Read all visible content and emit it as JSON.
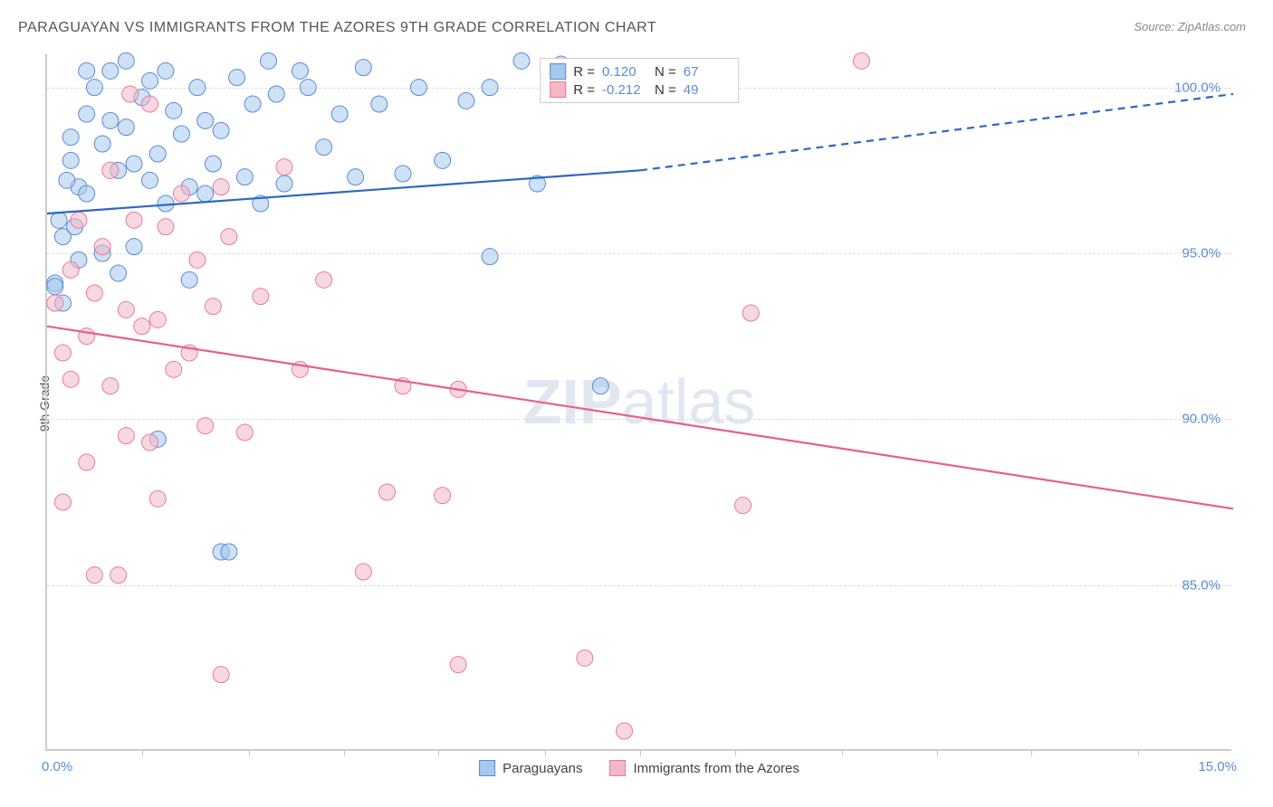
{
  "title": "PARAGUAYAN VS IMMIGRANTS FROM THE AZORES 9TH GRADE CORRELATION CHART",
  "source": "Source: ZipAtlas.com",
  "watermark": "ZIPatlas",
  "chart": {
    "type": "scatter",
    "ylabel": "9th Grade",
    "xlim": [
      0,
      15
    ],
    "ylim": [
      80,
      101
    ],
    "xlim_labels": [
      "0.0%",
      "15.0%"
    ],
    "xlim_label_colors": [
      "#5b8bd4",
      "#5b8bd4"
    ],
    "ytick_values": [
      85,
      90,
      95,
      100
    ],
    "ytick_labels": [
      "85.0%",
      "90.0%",
      "95.0%",
      "100.0%"
    ],
    "ytick_color": "#5b8bd4",
    "grid_color": "#dddddd",
    "axis_color": "#cccccc",
    "background_color": "#ffffff",
    "xtick_positions": [
      0.08,
      0.17,
      0.25,
      0.33,
      0.42,
      0.5,
      0.58,
      0.67,
      0.75,
      0.83,
      0.92
    ],
    "series": [
      {
        "name": "Paraguayans",
        "color_fill": "#a6c8ec",
        "color_stroke": "#5b8bd4",
        "marker_radius": 9,
        "fill_opacity": 0.55,
        "R": "0.120",
        "N": "67",
        "trend": {
          "x1": 0,
          "y1": 96.2,
          "x2": 7.5,
          "y2": 97.5,
          "dash_x2": 15,
          "dash_y2": 99.8,
          "color": "#2e67c4",
          "width": 2.2
        },
        "points": [
          [
            0.1,
            94.1
          ],
          [
            0.1,
            94.0
          ],
          [
            0.2,
            93.5
          ],
          [
            0.2,
            95.5
          ],
          [
            0.3,
            97.8
          ],
          [
            0.3,
            98.5
          ],
          [
            0.4,
            97.0
          ],
          [
            0.5,
            100.5
          ],
          [
            0.4,
            94.8
          ],
          [
            0.5,
            96.8
          ],
          [
            0.5,
            99.2
          ],
          [
            0.6,
            100.0
          ],
          [
            0.7,
            98.3
          ],
          [
            0.7,
            95.0
          ],
          [
            0.8,
            100.5
          ],
          [
            0.8,
            99.0
          ],
          [
            0.9,
            97.5
          ],
          [
            0.9,
            94.4
          ],
          [
            1.0,
            100.8
          ],
          [
            1.0,
            98.8
          ],
          [
            1.1,
            97.7
          ],
          [
            1.1,
            95.2
          ],
          [
            1.2,
            99.7
          ],
          [
            1.3,
            100.2
          ],
          [
            1.3,
            97.2
          ],
          [
            1.4,
            98.0
          ],
          [
            1.4,
            89.4
          ],
          [
            1.5,
            100.5
          ],
          [
            1.5,
            96.5
          ],
          [
            1.6,
            99.3
          ],
          [
            1.7,
            98.6
          ],
          [
            1.8,
            97.0
          ],
          [
            1.8,
            94.2
          ],
          [
            1.9,
            100.0
          ],
          [
            2.0,
            99.0
          ],
          [
            2.0,
            96.8
          ],
          [
            2.1,
            97.7
          ],
          [
            2.2,
            98.7
          ],
          [
            2.2,
            86.0
          ],
          [
            2.3,
            86.0
          ],
          [
            2.4,
            100.3
          ],
          [
            2.5,
            97.3
          ],
          [
            2.6,
            99.5
          ],
          [
            2.7,
            96.5
          ],
          [
            2.8,
            100.8
          ],
          [
            2.9,
            99.8
          ],
          [
            3.0,
            97.1
          ],
          [
            3.2,
            100.5
          ],
          [
            3.3,
            100.0
          ],
          [
            3.5,
            98.2
          ],
          [
            3.7,
            99.2
          ],
          [
            3.9,
            97.3
          ],
          [
            4.0,
            100.6
          ],
          [
            4.2,
            99.5
          ],
          [
            4.5,
            97.4
          ],
          [
            4.7,
            100.0
          ],
          [
            5.0,
            97.8
          ],
          [
            5.3,
            99.6
          ],
          [
            5.6,
            100.0
          ],
          [
            5.6,
            94.9
          ],
          [
            6.0,
            100.8
          ],
          [
            6.2,
            97.1
          ],
          [
            6.5,
            100.7
          ],
          [
            7.0,
            91.0
          ],
          [
            0.15,
            96.0
          ],
          [
            0.25,
            97.2
          ],
          [
            0.35,
            95.8
          ]
        ]
      },
      {
        "name": "Immigrants from the Azores",
        "color_fill": "#f3b8c6",
        "color_stroke": "#e87a9a",
        "marker_radius": 9,
        "fill_opacity": 0.55,
        "R": "-0.212",
        "N": "49",
        "trend": {
          "x1": 0,
          "y1": 92.8,
          "x2": 15,
          "y2": 87.3,
          "color": "#e85f87",
          "width": 2.2
        },
        "points": [
          [
            0.1,
            93.5
          ],
          [
            0.2,
            92.0
          ],
          [
            0.2,
            87.5
          ],
          [
            0.3,
            94.5
          ],
          [
            0.3,
            91.2
          ],
          [
            0.4,
            96.0
          ],
          [
            0.5,
            92.5
          ],
          [
            0.5,
            88.7
          ],
          [
            0.6,
            93.8
          ],
          [
            0.6,
            85.3
          ],
          [
            0.7,
            95.2
          ],
          [
            0.8,
            97.5
          ],
          [
            0.8,
            91.0
          ],
          [
            0.9,
            85.3
          ],
          [
            1.0,
            93.3
          ],
          [
            1.0,
            89.5
          ],
          [
            1.1,
            96.0
          ],
          [
            1.2,
            92.8
          ],
          [
            1.3,
            99.5
          ],
          [
            1.3,
            89.3
          ],
          [
            1.4,
            93.0
          ],
          [
            1.4,
            87.6
          ],
          [
            1.5,
            95.8
          ],
          [
            1.6,
            91.5
          ],
          [
            1.7,
            96.8
          ],
          [
            1.8,
            92.0
          ],
          [
            1.9,
            94.8
          ],
          [
            2.0,
            89.8
          ],
          [
            2.1,
            93.4
          ],
          [
            2.2,
            97.0
          ],
          [
            2.2,
            82.3
          ],
          [
            2.3,
            95.5
          ],
          [
            2.5,
            89.6
          ],
          [
            2.7,
            93.7
          ],
          [
            3.0,
            97.6
          ],
          [
            3.2,
            91.5
          ],
          [
            3.5,
            94.2
          ],
          [
            4.0,
            85.4
          ],
          [
            4.3,
            87.8
          ],
          [
            4.5,
            91.0
          ],
          [
            5.0,
            87.7
          ],
          [
            5.2,
            90.9
          ],
          [
            5.2,
            82.6
          ],
          [
            6.8,
            82.8
          ],
          [
            7.3,
            80.6
          ],
          [
            8.8,
            87.4
          ],
          [
            8.9,
            93.2
          ],
          [
            10.3,
            100.8
          ],
          [
            1.05,
            99.8
          ]
        ]
      }
    ],
    "legend_stat_labels": {
      "R": "R =",
      "N": "N ="
    },
    "bottom_legend": [
      {
        "label": "Paraguayans",
        "fill": "#a6c8ec",
        "stroke": "#5b8bd4"
      },
      {
        "label": "Immigrants from the Azores",
        "fill": "#f3b8c6",
        "stroke": "#e87a9a"
      }
    ]
  }
}
